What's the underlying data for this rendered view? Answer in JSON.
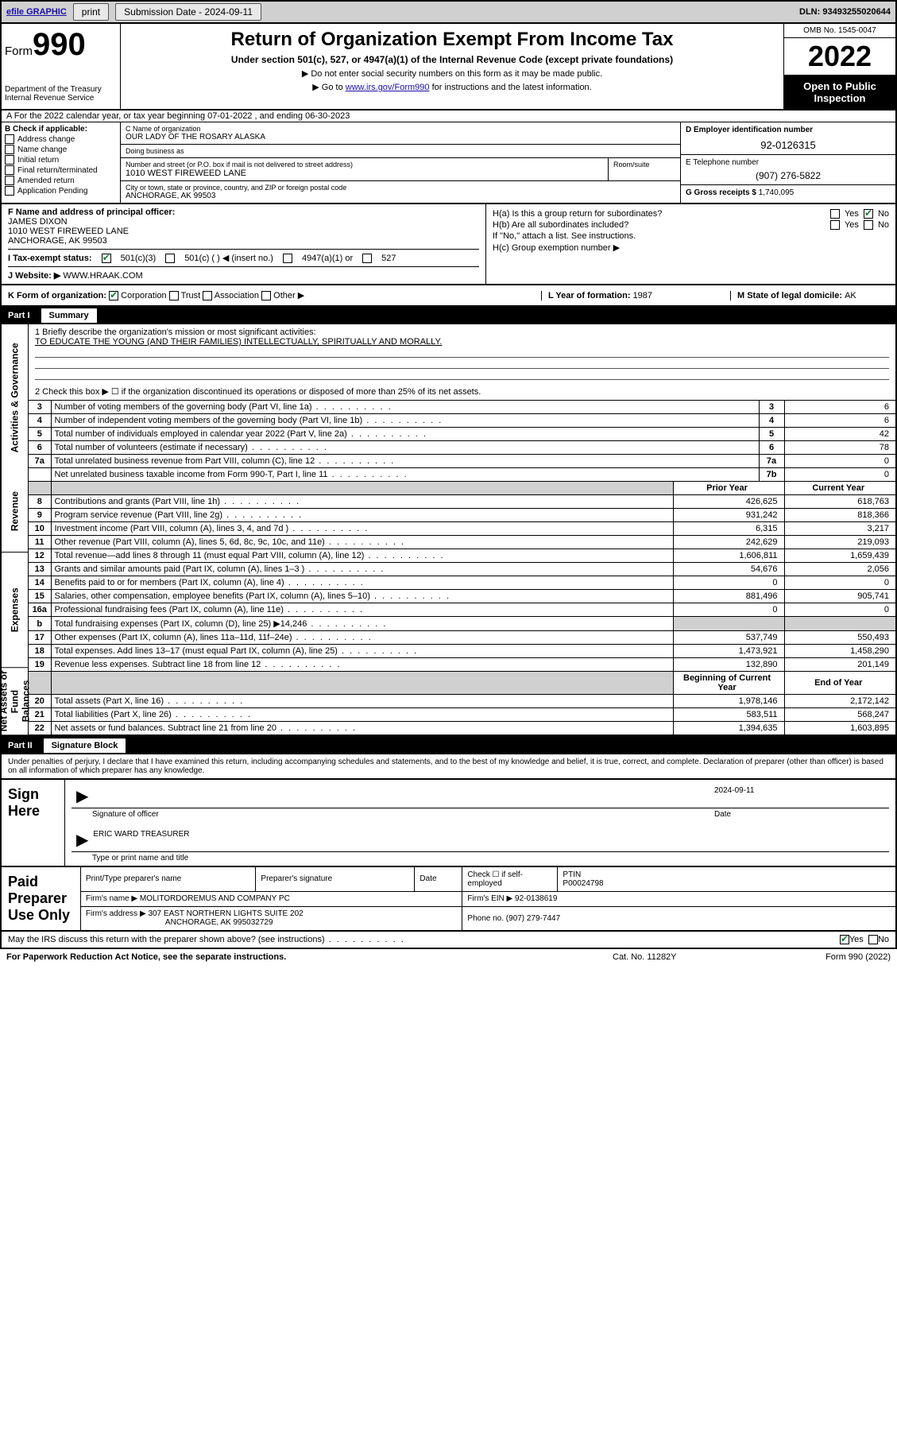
{
  "topbar": {
    "efile": "efile GRAPHIC",
    "print": "print",
    "sub_label": "Submission Date - ",
    "sub_date": "2024-09-11",
    "dln": "DLN: 93493255020644"
  },
  "header": {
    "form_word": "Form",
    "form_no": "990",
    "dept": "Department of the Treasury",
    "irs": "Internal Revenue Service",
    "title": "Return of Organization Exempt From Income Tax",
    "sub": "Under section 501(c), 527, or 4947(a)(1) of the Internal Revenue Code (except private foundations)",
    "l1": "▶ Do not enter social security numbers on this form as it may be made public.",
    "l2_a": "▶ Go to ",
    "l2_link": "www.irs.gov/Form990",
    "l2_b": " for instructions and the latest information.",
    "omb": "OMB No. 1545-0047",
    "year": "2022",
    "otp": "Open to Public Inspection"
  },
  "lineA": "A For the 2022 calendar year, or tax year beginning 07-01-2022    , and ending 06-30-2023",
  "B": {
    "heading": "B Check if applicable:",
    "opts": [
      "Address change",
      "Name change",
      "Initial return",
      "Final return/terminated",
      "Amended return",
      "Application Pending"
    ]
  },
  "C": {
    "name_lbl": "C Name of organization",
    "name": "OUR LADY OF THE ROSARY ALASKA",
    "dba_lbl": "Doing business as",
    "dba": "",
    "addr_lbl": "Number and street (or P.O. box if mail is not delivered to street address)",
    "room_lbl": "Room/suite",
    "addr": "1010 WEST FIREWEED LANE",
    "city_lbl": "City or town, state or province, country, and ZIP or foreign postal code",
    "city": "ANCHORAGE, AK  99503"
  },
  "D": {
    "lbl": "D Employer identification number",
    "val": "92-0126315"
  },
  "E": {
    "lbl": "E Telephone number",
    "val": "(907) 276-5822"
  },
  "G": {
    "lbl": "G Gross receipts $ ",
    "val": "1,740,095"
  },
  "F": {
    "lbl": "F  Name and address of principal officer:",
    "name": "JAMES DIXON",
    "addr1": "1010 WEST FIREWEED LANE",
    "addr2": "ANCHORAGE, AK  99503"
  },
  "H": {
    "a": "H(a)  Is this a group return for subordinates?",
    "b": "H(b)  Are all subordinates included?",
    "b2": "If \"No,\" attach a list. See instructions.",
    "c": "H(c)  Group exemption number ▶",
    "yes": "Yes",
    "no": "No"
  },
  "I": {
    "lbl": "I     Tax-exempt status:",
    "o1": "501(c)(3)",
    "o2": "501(c) (   ) ◀ (insert no.)",
    "o3": "4947(a)(1) or",
    "o4": "527"
  },
  "J": {
    "lbl": "J    Website: ▶ ",
    "val": "WWW.HRAAK.COM"
  },
  "K": {
    "lbl": "K Form of organization:",
    "o": [
      "Corporation",
      "Trust",
      "Association",
      "Other ▶"
    ],
    "yr_lbl": "L Year of formation: ",
    "yr": "1987",
    "st_lbl": "M State of legal domicile: ",
    "st": "AK"
  },
  "part1": {
    "num": "Part I",
    "title": "Summary"
  },
  "mission": {
    "q": "1   Briefly describe the organization's mission or most significant activities:",
    "txt": "TO EDUCATE THE YOUNG (AND THEIR FAMILIES) INTELLECTUALLY, SPIRITUALLY AND MORALLY."
  },
  "sideLabels": [
    "Activities & Governance",
    "Revenue",
    "Expenses",
    "Net Assets or Fund Balances"
  ],
  "gov": {
    "l2": "2    Check this box ▶ ☐  if the organization discontinued its operations or disposed of more than 25% of its net assets.",
    "rows": [
      {
        "n": "3",
        "t": "Number of voting members of the governing body (Part VI, line 1a)",
        "b": "3",
        "v": "6"
      },
      {
        "n": "4",
        "t": "Number of independent voting members of the governing body (Part VI, line 1b)",
        "b": "4",
        "v": "6"
      },
      {
        "n": "5",
        "t": "Total number of individuals employed in calendar year 2022 (Part V, line 2a)",
        "b": "5",
        "v": "42"
      },
      {
        "n": "6",
        "t": "Total number of volunteers (estimate if necessary)",
        "b": "6",
        "v": "78"
      },
      {
        "n": "7a",
        "t": "Total unrelated business revenue from Part VIII, column (C), line 12",
        "b": "7a",
        "v": "0"
      },
      {
        "n": "",
        "t": "Net unrelated business taxable income from Form 990-T, Part I, line 11",
        "b": "7b",
        "v": "0"
      }
    ]
  },
  "rev": {
    "h_prior": "Prior Year",
    "h_cur": "Current Year",
    "rows": [
      {
        "n": "8",
        "t": "Contributions and grants (Part VIII, line 1h)",
        "p": "426,625",
        "c": "618,763"
      },
      {
        "n": "9",
        "t": "Program service revenue (Part VIII, line 2g)",
        "p": "931,242",
        "c": "818,366"
      },
      {
        "n": "10",
        "t": "Investment income (Part VIII, column (A), lines 3, 4, and 7d )",
        "p": "6,315",
        "c": "3,217"
      },
      {
        "n": "11",
        "t": "Other revenue (Part VIII, column (A), lines 5, 6d, 8c, 9c, 10c, and 11e)",
        "p": "242,629",
        "c": "219,093"
      },
      {
        "n": "12",
        "t": "Total revenue—add lines 8 through 11 (must equal Part VIII, column (A), line 12)",
        "p": "1,606,811",
        "c": "1,659,439"
      }
    ]
  },
  "exp": {
    "rows": [
      {
        "n": "13",
        "t": "Grants and similar amounts paid (Part IX, column (A), lines 1–3 )",
        "p": "54,676",
        "c": "2,056"
      },
      {
        "n": "14",
        "t": "Benefits paid to or for members (Part IX, column (A), line 4)",
        "p": "0",
        "c": "0"
      },
      {
        "n": "15",
        "t": "Salaries, other compensation, employee benefits (Part IX, column (A), lines 5–10)",
        "p": "881,496",
        "c": "905,741"
      },
      {
        "n": "16a",
        "t": "Professional fundraising fees (Part IX, column (A), line 11e)",
        "p": "0",
        "c": "0"
      },
      {
        "n": "b",
        "t": "Total fundraising expenses (Part IX, column (D), line 25) ▶14,246",
        "p": "",
        "c": "",
        "shade": true
      },
      {
        "n": "17",
        "t": "Other expenses (Part IX, column (A), lines 11a–11d, 11f–24e)",
        "p": "537,749",
        "c": "550,493"
      },
      {
        "n": "18",
        "t": "Total expenses. Add lines 13–17 (must equal Part IX, column (A), line 25)",
        "p": "1,473,921",
        "c": "1,458,290"
      },
      {
        "n": "19",
        "t": "Revenue less expenses. Subtract line 18 from line 12",
        "p": "132,890",
        "c": "201,149"
      }
    ]
  },
  "net": {
    "h_b": "Beginning of Current Year",
    "h_e": "End of Year",
    "rows": [
      {
        "n": "20",
        "t": "Total assets (Part X, line 16)",
        "p": "1,978,146",
        "c": "2,172,142"
      },
      {
        "n": "21",
        "t": "Total liabilities (Part X, line 26)",
        "p": "583,511",
        "c": "568,247"
      },
      {
        "n": "22",
        "t": "Net assets or fund balances. Subtract line 21 from line 20",
        "p": "1,394,635",
        "c": "1,603,895"
      }
    ]
  },
  "part2": {
    "num": "Part II",
    "title": "Signature Block"
  },
  "sig": {
    "decl": "Under penalties of perjury, I declare that I have examined this return, including accompanying schedules and statements, and to the best of my knowledge and belief, it is true, correct, and complete. Declaration of preparer (other than officer) is based on all information of which preparer has any knowledge.",
    "here": "Sign Here",
    "sig_of": "Signature of officer",
    "date_lbl": "Date",
    "date": "2024-09-11",
    "name": "ERIC WARD  TREASURER",
    "name_lbl": "Type or print name and title"
  },
  "prep": {
    "lab": "Paid Preparer Use Only",
    "h": [
      "Print/Type preparer's name",
      "Preparer's signature",
      "Date"
    ],
    "chk_lbl": "Check ☐ if self-employed",
    "ptin_lbl": "PTIN",
    "ptin": "P00024798",
    "firm_lbl": "Firm's name     ▶ ",
    "firm": "MOLITORDOREMUS AND COMPANY PC",
    "ein_lbl": "Firm's EIN ▶ ",
    "ein": "92-0138619",
    "addr_lbl": "Firm's address ▶ ",
    "addr1": "307 EAST NORTHERN LIGHTS SUITE 202",
    "addr2": "ANCHORAGE, AK  995032729",
    "ph_lbl": "Phone no. ",
    "ph": "(907) 279-7447"
  },
  "foot": {
    "q": "May the IRS discuss this return with the preparer shown above? (see instructions)",
    "yes": "Yes",
    "no": "No",
    "pra": "For Paperwork Reduction Act Notice, see the separate instructions.",
    "cat": "Cat. No. 11282Y",
    "form": "Form 990 (2022)"
  }
}
